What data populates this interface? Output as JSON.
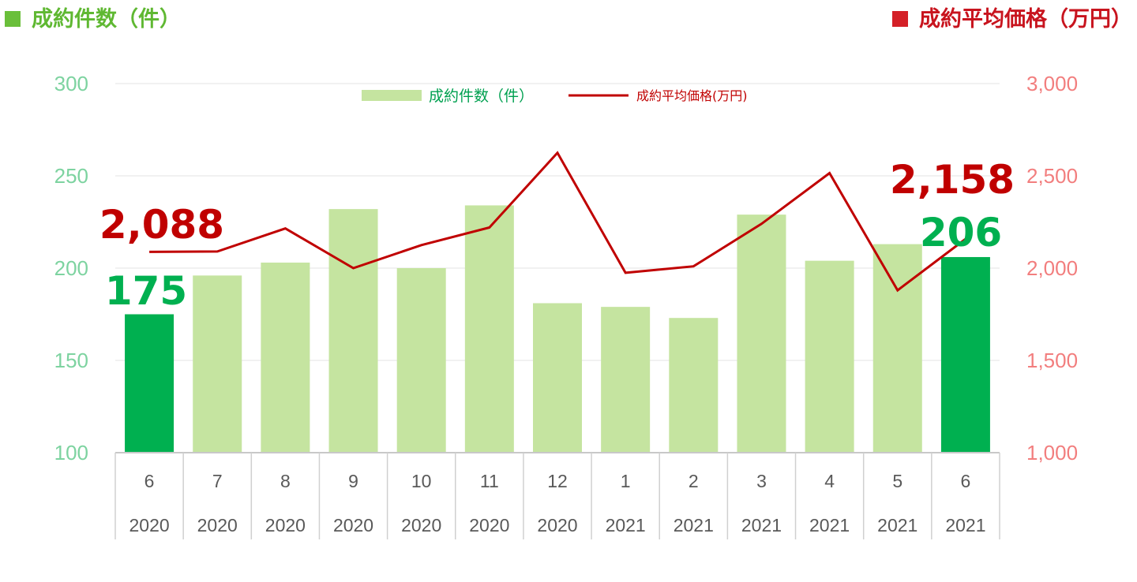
{
  "titles": {
    "left": "成約件数（件）",
    "right": "成約平均価格（万円）"
  },
  "colors": {
    "bar": "#c5e4a0",
    "bar_highlight": "#00b050",
    "line": "#c00000",
    "left_axis": "#7dd3a0",
    "right_axis": "#f27e7e",
    "callout_count": "#00b050",
    "callout_price": "#c00000"
  },
  "chart_data": {
    "type": "bar",
    "categories": [
      "6",
      "7",
      "8",
      "9",
      "10",
      "11",
      "12",
      "1",
      "2",
      "3",
      "4",
      "5",
      "6"
    ],
    "years": [
      "2020",
      "2020",
      "2020",
      "2020",
      "2020",
      "2020",
      "2020",
      "2021",
      "2021",
      "2021",
      "2021",
      "2021",
      "2021"
    ],
    "y_left_ticks": [
      "100",
      "150",
      "200",
      "250",
      "300"
    ],
    "y_right_ticks": [
      "1,000",
      "1,500",
      "2,000",
      "2,500",
      "3,000"
    ],
    "ylim_left": [
      100,
      300
    ],
    "ylim_right": [
      1000,
      3000
    ],
    "grid": true,
    "legend_position": "top-center",
    "highlight_indices": [
      0,
      12
    ],
    "series": [
      {
        "name": "成約件数（件）",
        "type": "bar",
        "axis": "left",
        "values": [
          175,
          196,
          203,
          232,
          200,
          234,
          181,
          179,
          173,
          229,
          204,
          213,
          206
        ]
      },
      {
        "name": "成約平均価格(万円)",
        "type": "line",
        "axis": "right",
        "values": [
          2088,
          2090,
          2215,
          2000,
          2125,
          2220,
          2625,
          1975,
          2010,
          2240,
          2515,
          1880,
          2158
        ]
      }
    ],
    "annotations": [
      {
        "text": "2,088",
        "series": "price",
        "index": 0
      },
      {
        "text": "175",
        "series": "count",
        "index": 0
      },
      {
        "text": "2,158",
        "series": "price",
        "index": 12
      },
      {
        "text": "206",
        "series": "count",
        "index": 12
      }
    ]
  }
}
